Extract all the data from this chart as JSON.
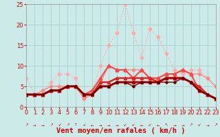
{
  "background_color": "#cceae7",
  "grid_color": "#aad4d0",
  "xlabel": "Vent moyen/en rafales ( km/h )",
  "xlim": [
    0,
    23
  ],
  "ylim": [
    0,
    25
  ],
  "yticks": [
    0,
    5,
    10,
    15,
    20,
    25
  ],
  "xticks": [
    0,
    1,
    2,
    3,
    4,
    5,
    6,
    7,
    8,
    9,
    10,
    11,
    12,
    13,
    14,
    15,
    16,
    17,
    18,
    19,
    20,
    21,
    22,
    23
  ],
  "series": [
    {
      "x": [
        0,
        1,
        2,
        3,
        4,
        5,
        6,
        7,
        8,
        9,
        10,
        11,
        12,
        13,
        14,
        15,
        16,
        17,
        18,
        19,
        20,
        21,
        22,
        23
      ],
      "y": [
        7,
        3,
        4,
        6,
        8,
        8,
        7,
        2,
        4,
        10,
        15,
        18,
        25,
        18,
        12,
        19,
        17,
        13,
        9,
        8,
        9,
        9,
        7,
        5
      ],
      "color": "#ffaaaa",
      "lw": 1.0,
      "ls": "dotted",
      "marker": "D",
      "ms": 2.5
    },
    {
      "x": [
        0,
        1,
        2,
        3,
        4,
        5,
        6,
        7,
        8,
        9,
        10,
        11,
        12,
        13,
        14,
        15,
        16,
        17,
        18,
        19,
        20,
        21,
        22,
        23
      ],
      "y": [
        3,
        3,
        4,
        5,
        5,
        5,
        5,
        2,
        3,
        6,
        10,
        9,
        9,
        9,
        9,
        7,
        7,
        8,
        8,
        9,
        8,
        8,
        7,
        5
      ],
      "color": "#ff8888",
      "lw": 1.0,
      "ls": "solid",
      "marker": "D",
      "ms": 2.5
    },
    {
      "x": [
        0,
        1,
        2,
        3,
        4,
        5,
        6,
        7,
        8,
        9,
        10,
        11,
        12,
        13,
        14,
        15,
        16,
        17,
        18,
        19,
        20,
        21,
        22,
        23
      ],
      "y": [
        3,
        3,
        3,
        4,
        4,
        5,
        5,
        3,
        4,
        7,
        10,
        9,
        9,
        7,
        9,
        7,
        7,
        8,
        8,
        9,
        8,
        4,
        3,
        2
      ],
      "color": "#ff4444",
      "lw": 1.5,
      "ls": "solid",
      "marker": "^",
      "ms": 3.5
    },
    {
      "x": [
        0,
        1,
        2,
        3,
        4,
        5,
        6,
        7,
        8,
        9,
        10,
        11,
        12,
        13,
        14,
        15,
        16,
        17,
        18,
        19,
        20,
        21,
        22,
        23
      ],
      "y": [
        3,
        3,
        3,
        4,
        4,
        5,
        5,
        3,
        3,
        6,
        6,
        7,
        7,
        7,
        7,
        7,
        6,
        7,
        7,
        7,
        6,
        5,
        3,
        2
      ],
      "color": "#dd2222",
      "lw": 1.8,
      "ls": "solid",
      "marker": "^",
      "ms": 3
    },
    {
      "x": [
        0,
        1,
        2,
        3,
        4,
        5,
        6,
        7,
        8,
        9,
        10,
        11,
        12,
        13,
        14,
        15,
        16,
        17,
        18,
        19,
        20,
        21,
        22,
        23
      ],
      "y": [
        3,
        3,
        3,
        4,
        4,
        5,
        5,
        3,
        3,
        5,
        5,
        6,
        6,
        6,
        6,
        6,
        6,
        7,
        7,
        7,
        6,
        4,
        3,
        2
      ],
      "color": "#cc0000",
      "lw": 2.2,
      "ls": "solid",
      "marker": "^",
      "ms": 3
    },
    {
      "x": [
        0,
        1,
        2,
        3,
        4,
        5,
        6,
        7,
        8,
        9,
        10,
        11,
        12,
        13,
        14,
        15,
        16,
        17,
        18,
        19,
        20,
        21,
        22,
        23
      ],
      "y": [
        3,
        3,
        3,
        4,
        4,
        5,
        5,
        3,
        3,
        5,
        5,
        6,
        6,
        6,
        6,
        6,
        6,
        7,
        7,
        7,
        6,
        4,
        3,
        2
      ],
      "color": "#990000",
      "lw": 1.2,
      "ls": "solid",
      "marker": "D",
      "ms": 2
    },
    {
      "x": [
        0,
        1,
        2,
        3,
        4,
        5,
        6,
        7,
        8,
        9,
        10,
        11,
        12,
        13,
        14,
        15,
        16,
        17,
        18,
        19,
        20,
        21,
        22,
        23
      ],
      "y": [
        3,
        3,
        3,
        4,
        4,
        5,
        5,
        3,
        3,
        5,
        5,
        6,
        6,
        5,
        6,
        6,
        6,
        6,
        6,
        7,
        6,
        4,
        3,
        2
      ],
      "color": "#660000",
      "lw": 1.0,
      "ls": "solid",
      "marker": "D",
      "ms": 2
    }
  ],
  "arrows": [
    "↗",
    "→",
    "→",
    "↗",
    "↙",
    "↗",
    "↑",
    "↙",
    "←",
    "→",
    "→",
    "→",
    "↙",
    "↙",
    "←",
    "↙",
    "←",
    "↖",
    "→",
    "→",
    "↗",
    "↙",
    "→",
    "↗"
  ],
  "tick_fontsize": 6,
  "xlabel_fontsize": 7.5,
  "xlabel_color": "#cc0000"
}
